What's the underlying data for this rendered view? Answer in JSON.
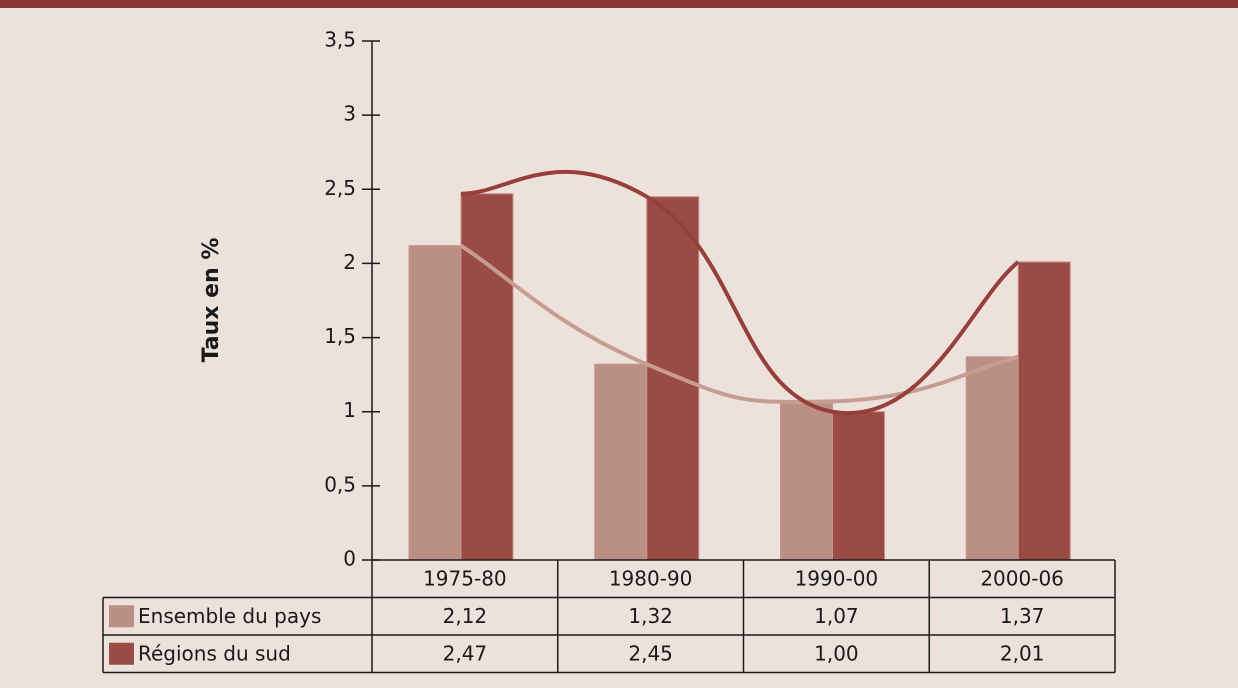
{
  "chart_data": {
    "type": "bar",
    "y_label": "Taux en %",
    "categories": [
      "1975-80",
      "1980-90",
      "1990-00",
      "2000-06"
    ],
    "series": [
      {
        "name": "Ensemble du pays",
        "color": "#ba8f84",
        "values": [
          2.12,
          1.32,
          1.07,
          1.37
        ],
        "value_labels": [
          "2,12",
          "1,32",
          "1,07",
          "1,37"
        ]
      },
      {
        "name": "Régions du sud",
        "color": "#9a4b46",
        "values": [
          2.47,
          2.45,
          1.0,
          2.01
        ],
        "value_labels": [
          "2,47",
          "2,45",
          "1,00",
          "2,01"
        ]
      }
    ],
    "line_colors": [
      "#c79d92",
      "#963f3b"
    ],
    "smooth_lines": true,
    "data_table": true,
    "ylim": [
      0,
      3.5
    ],
    "yticks": [
      0,
      {
        "value": 0.5,
        "label": "0,5"
      },
      1,
      {
        "value": 1.5,
        "label": "1,5"
      },
      2,
      {
        "value": 2.5,
        "label": "2,5"
      },
      3,
      {
        "value": 3.5,
        "label": "3,5"
      }
    ]
  }
}
